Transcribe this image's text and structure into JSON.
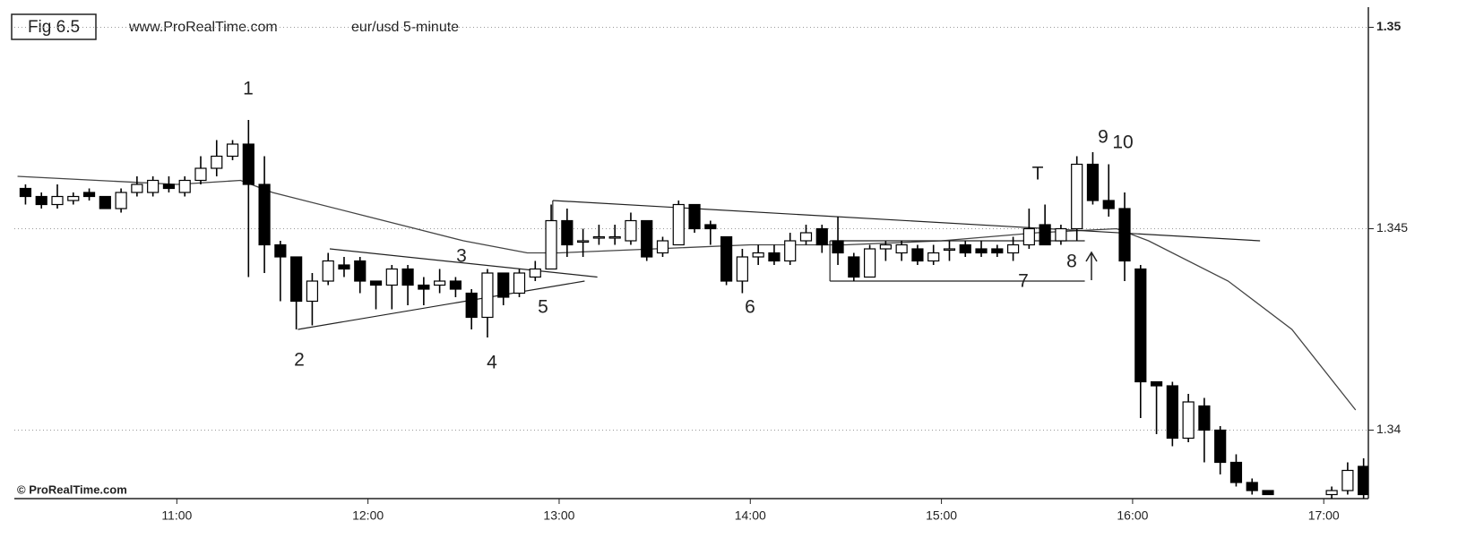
{
  "chart_data": {
    "type": "candlestick",
    "title": "Fig 6.5",
    "source": "www.ProRealTime.com",
    "subtitle": "eur/usd 5-minute",
    "watermark": "© ProRealTime.com",
    "x": [
      610,
      615,
      620,
      625,
      630,
      635,
      640,
      645,
      650,
      655,
      660,
      665,
      670,
      675,
      680,
      685,
      690,
      695,
      700,
      705,
      710,
      715,
      720,
      725,
      730,
      735,
      740,
      745,
      750,
      755,
      760,
      765,
      770,
      775,
      780,
      785,
      790,
      795,
      800,
      805,
      810,
      815,
      820,
      825,
      830,
      835,
      840,
      845,
      850,
      855,
      860,
      865,
      870,
      875,
      880,
      885,
      890,
      895,
      900,
      905,
      910,
      915,
      920,
      925,
      930,
      935,
      940,
      945,
      950,
      955,
      960,
      965,
      970,
      975,
      980,
      985,
      990,
      995,
      1000,
      1020,
      1025,
      1030
    ],
    "open": [
      1.346,
      1.3458,
      1.3456,
      1.3457,
      1.3459,
      1.3458,
      1.3455,
      1.3459,
      1.3459,
      1.3461,
      1.3459,
      1.3462,
      1.3465,
      1.3468,
      1.3471,
      1.3461,
      1.3446,
      1.3443,
      1.3432,
      1.3437,
      1.3441,
      1.3442,
      1.3437,
      1.3436,
      1.344,
      1.3436,
      1.3436,
      1.3437,
      1.3434,
      1.3428,
      1.3439,
      1.3434,
      1.3438,
      1.344,
      1.3452,
      1.3447,
      1.3448,
      1.3448,
      1.3447,
      1.3452,
      1.3444,
      1.3446,
      1.3456,
      1.3451,
      1.3448,
      1.3437,
      1.3443,
      1.3444,
      1.3442,
      1.3447,
      1.345,
      1.3447,
      1.3443,
      1.3438,
      1.3445,
      1.3444,
      1.3445,
      1.3442,
      1.3445,
      1.3446,
      1.3445,
      1.3445,
      1.3444,
      1.3446,
      1.3451,
      1.3447,
      1.345,
      1.3466,
      1.3457,
      1.3455,
      1.344,
      1.3412,
      1.3411,
      1.3398,
      1.3406,
      1.34,
      1.3392,
      1.3387,
      1.3385,
      1.3384,
      1.3385,
      1.3391
    ],
    "high": [
      1.3461,
      1.3459,
      1.3461,
      1.3459,
      1.346,
      1.3458,
      1.346,
      1.3463,
      1.3463,
      1.3463,
      1.3463,
      1.3468,
      1.3472,
      1.3472,
      1.3477,
      1.3468,
      1.3447,
      1.3443,
      1.3439,
      1.3444,
      1.3443,
      1.3443,
      1.3437,
      1.3441,
      1.3441,
      1.3438,
      1.344,
      1.3438,
      1.3435,
      1.344,
      1.3439,
      1.344,
      1.3442,
      1.3456,
      1.3455,
      1.345,
      1.3451,
      1.3451,
      1.3454,
      1.3452,
      1.3448,
      1.3457,
      1.3456,
      1.3452,
      1.3448,
      1.3445,
      1.3446,
      1.3446,
      1.3449,
      1.3451,
      1.3451,
      1.3453,
      1.3444,
      1.3446,
      1.3447,
      1.3447,
      1.3446,
      1.3446,
      1.3447,
      1.3447,
      1.3447,
      1.3446,
      1.3448,
      1.3455,
      1.3456,
      1.3451,
      1.3468,
      1.3469,
      1.3466,
      1.3459,
      1.3441,
      1.3412,
      1.3412,
      1.3409,
      1.3408,
      1.3401,
      1.3394,
      1.3388,
      1.3385,
      1.3386,
      1.3392,
      1.3393
    ],
    "low": [
      1.3456,
      1.3455,
      1.3455,
      1.3456,
      1.3457,
      1.3455,
      1.3454,
      1.3458,
      1.3458,
      1.3459,
      1.3458,
      1.3461,
      1.3463,
      1.3467,
      1.3438,
      1.3439,
      1.3432,
      1.3425,
      1.3426,
      1.3436,
      1.3438,
      1.3434,
      1.343,
      1.343,
      1.3431,
      1.3431,
      1.3434,
      1.3433,
      1.3425,
      1.3423,
      1.3431,
      1.3433,
      1.3437,
      1.344,
      1.3443,
      1.3443,
      1.3446,
      1.3446,
      1.3446,
      1.3442,
      1.3443,
      1.3446,
      1.3449,
      1.3446,
      1.3436,
      1.3434,
      1.3441,
      1.3441,
      1.3441,
      1.3446,
      1.3444,
      1.3441,
      1.3437,
      1.3438,
      1.3442,
      1.3442,
      1.3441,
      1.3441,
      1.3442,
      1.3443,
      1.3443,
      1.3443,
      1.3442,
      1.3445,
      1.3446,
      1.3446,
      1.3447,
      1.3456,
      1.3453,
      1.3437,
      1.3403,
      1.3399,
      1.3396,
      1.3397,
      1.3392,
      1.3389,
      1.3386,
      1.3384,
      1.3384,
      1.3383,
      1.3384,
      1.3383
    ],
    "close": [
      1.3458,
      1.3456,
      1.3458,
      1.3458,
      1.3458,
      1.3455,
      1.3459,
      1.3461,
      1.3462,
      1.346,
      1.3462,
      1.3465,
      1.3468,
      1.3471,
      1.3461,
      1.3446,
      1.3443,
      1.3432,
      1.3437,
      1.3442,
      1.344,
      1.3437,
      1.3436,
      1.344,
      1.3436,
      1.3435,
      1.3437,
      1.3435,
      1.3428,
      1.3439,
      1.3433,
      1.3439,
      1.344,
      1.3452,
      1.3446,
      1.3447,
      1.3448,
      1.3448,
      1.3452,
      1.3443,
      1.3447,
      1.3456,
      1.345,
      1.345,
      1.3437,
      1.3443,
      1.3444,
      1.3442,
      1.3447,
      1.3449,
      1.3446,
      1.3444,
      1.3438,
      1.3445,
      1.3446,
      1.3446,
      1.3442,
      1.3444,
      1.3445,
      1.3444,
      1.3444,
      1.3444,
      1.3446,
      1.345,
      1.3446,
      1.345,
      1.3466,
      1.3457,
      1.3455,
      1.3442,
      1.3412,
      1.3411,
      1.3398,
      1.3407,
      1.34,
      1.3392,
      1.3387,
      1.3385,
      1.3384,
      1.3385,
      1.339,
      1.3384
    ],
    "up_color": "#ffffff",
    "down_color": "#000000",
    "moving_average": {
      "x": [
        610,
        660,
        680,
        690,
        720,
        750,
        770,
        780,
        810,
        840,
        870,
        900,
        930,
        955,
        965,
        990,
        1010,
        1030
      ],
      "values": [
        1.3463,
        1.3461,
        1.3462,
        1.3459,
        1.3453,
        1.3447,
        1.3444,
        1.3444,
        1.3445,
        1.3446,
        1.3446,
        1.3447,
        1.3449,
        1.345,
        1.3447,
        1.3437,
        1.3425,
        1.3405
      ],
      "color": "#444444"
    },
    "trendlines": [
      {
        "x": [
          698,
          788
        ],
        "y": [
          1.3425,
          1.3437
        ]
      },
      {
        "x": [
          708,
          792
        ],
        "y": [
          1.3445,
          1.3438
        ]
      },
      {
        "x": [
          778,
          778
        ],
        "y": [
          1.3451,
          1.3457
        ]
      },
      {
        "x": [
          778,
          1000
        ],
        "y": [
          1.3457,
          1.3447
        ]
      },
      {
        "x": [
          865,
          865
        ],
        "y": [
          1.3447,
          1.3437
        ]
      },
      {
        "x": [
          865,
          945
        ],
        "y": [
          1.3437,
          1.3437
        ]
      },
      {
        "x": [
          865,
          945
        ],
        "y": [
          1.3447,
          1.3447
        ]
      }
    ],
    "annotations": [
      "1",
      "2",
      "3",
      "4",
      "5",
      "6",
      "7",
      "8",
      "9",
      "10",
      "T"
    ],
    "xlim": [
      609,
      1034
    ],
    "xticks": [
      {
        "value": 660,
        "label": "11:00"
      },
      {
        "value": 720,
        "label": "12:00"
      },
      {
        "value": 780,
        "label": "13:00"
      },
      {
        "value": 840,
        "label": "14:00"
      },
      {
        "value": 900,
        "label": "15:00"
      },
      {
        "value": 960,
        "label": "16:00"
      },
      {
        "value": 1020,
        "label": "17:00"
      }
    ],
    "ylim": [
      1.3383,
      1.3505
    ],
    "yticks": [
      1.34,
      1.345,
      1.35
    ],
    "grid": true
  }
}
